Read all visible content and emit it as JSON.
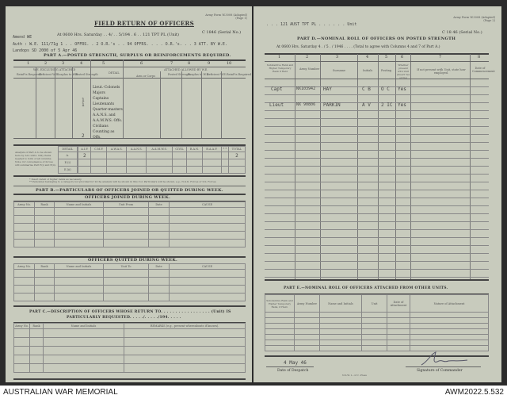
{
  "left": {
    "form_ref": "Army Form W.3008 (Adapted) (Page 1)",
    "title": "FIELD RETURN OF OFFICERS",
    "at_line": "At 0600 Hrs. Saturday . . 4/ . . 5/194 . 6 . .  121 TPT PL (Unit)",
    "serial": "C 1846 (Serial No.)",
    "amend": "Amend WE",
    "auth": "Auth : W.E. 111/71g 1 . . OFFRS. . 2 O.R.'s . . 94   OFFRS. . . . O.R.'s. . . 3 ATT. BY W.E.",
    "landops": "Landops SD 2000 of 5 Apr 46",
    "part_a": "PART A.—POSTED STRENGTH, SURPLUS OR REINFORCEMENTS REQUIRED.",
    "col_numbers": [
      "1",
      "2",
      "3",
      "4",
      "5",
      "6",
      "7",
      "8",
      "9",
      "10"
    ],
    "we_excluding": "W.E. EXCLUDING ATTACHED",
    "attached_allowed": "ATTACHED ALLOWED BY W.E.",
    "col_heads": [
      "Reinf'ts Required",
      "Deficient W.E.",
      "Surplus to W.E.",
      "Posted Strength",
      "DETAIL",
      "Arm or Corps",
      "Posted Strength",
      "Surplus to W.E.",
      "Deficient W.E.",
      "Reinf'ts Required"
    ],
    "ranks": [
      "Lieut.-Colonels",
      "Majors",
      "Captains",
      "Lieutenants",
      "Quarter-masters",
      "A.A.N.S. and A.A.M.W.S. Offs.",
      "Civilians Counting as Offs."
    ],
    "posted_values": [
      "1",
      "1"
    ],
    "posted_total": "2",
    "analysis_note": "Analysis of Part A to be shown here by ALL units. Only items needed to form of all columns. Note: for convenience of forces will summarise Part E(i) and E(ii).",
    "analysis_heads": [
      "DETAIL",
      "",
      "A.I.F.",
      "C.M.F.",
      "A.W.A.S.",
      "A.A.N.S.",
      "A.A.M.W.S.",
      "CIVIL",
      "R.A.N.",
      "R.A.A.F.",
      "* *",
      "TOTAL"
    ],
    "analysis_rows": [
      "A.",
      "E.(i)",
      "E.(ii)"
    ],
    "analysis_aif": "2",
    "analysis_total": "2",
    "footnote1": "* Insert detail of higher ranks as necessary.",
    "footnote2": "** Personnel belonging to a category not provided for in the analysis will be shown in this Col. Particulars will be shown, e.g., N.G.K. Forces or S.S. Forces.",
    "part_b": "PART B.—PARTICULARS OF OFFICERS JOINED OR QUITTED DURING WEEK.",
    "joined_title": "OFFICERS JOINED DURING WEEK.",
    "joined_heads": [
      "Army No.",
      "Rank",
      "Name and Initials",
      "Unit From",
      "Date",
      "CAUSE"
    ],
    "quitted_title": "OFFICERS QUITTED DURING WEEK.",
    "quitted_heads": [
      "Army No.",
      "Rank",
      "Name and Initials",
      "Unit To",
      "Date",
      "CAUSE"
    ],
    "part_c_1": "PART C.—DESCRIPTION OF OFFICERS WHOSE RETURN TO. . . . . . . . . . . . . . . . . (Unit) IS",
    "part_c_2": "PARTICULARLY REQUESTED.  . . . ./. . . . ./194. . . . .",
    "part_c_heads": [
      "Army No.",
      "Rank",
      "Name and Initials",
      "REMARKS (e.g., present whereabouts if known)."
    ]
  },
  "right": {
    "unit": ". . . 121 AUST TPT PL . . . . . . Unit",
    "form_ref": "Army Form W.3008 (Adapted) (Page 2)",
    "serial": "C 18 46 (Serial No.)",
    "part_d": "PART D.—NOMINAL ROLL OF OFFICERS ON POSTED STRENGTH",
    "at_line": "At 0600 Hrs. Saturday  4 . / 5 . / 1946 . . . .  (Total to agree with Columns 4 and 7 of Part A.)",
    "col_numbers": [
      "1",
      "2",
      "3",
      "4",
      "5",
      "6",
      "7",
      "8"
    ],
    "col_heads": [
      "Substantive Rank and Higher Temporary Rank if Held",
      "Army Number",
      "Surname",
      "Initials",
      "Posting",
      "Whether present with Unit (Insert Yes or No)",
      "If not present with Unit, state how employed.",
      "Date of Commencement"
    ],
    "rows": [
      {
        "rank": "Capt",
        "number": "NX103942",
        "surname": "HAY",
        "initials": "C B",
        "posting": "O C",
        "present": "Yes"
      },
      {
        "rank": "Lieut",
        "number": "NX 90806",
        "surname": "PARKIN",
        "initials": "A V",
        "posting": "2 IC",
        "present": "Yes"
      }
    ],
    "part_e": "PART E.—NOMINAL ROLL OF OFFICERS ATTACHED FROM OTHER UNITS.",
    "part_e_heads": [
      "Substantive Rank and Higher Temporary Rank, if Held.",
      "Army Number",
      "Name and Initials",
      "Unit",
      "Date of Attachment",
      "Nature of Attachment"
    ],
    "despatch_date": "4 May 46",
    "despatch_label": "Date of Despatch",
    "printer": "N.S.W. L. of C. Press",
    "signature_label": "Signature of Commander"
  },
  "footer": {
    "left": "AUSTRALIAN WAR MEMORIAL",
    "right": "AWM2022.5.532"
  }
}
